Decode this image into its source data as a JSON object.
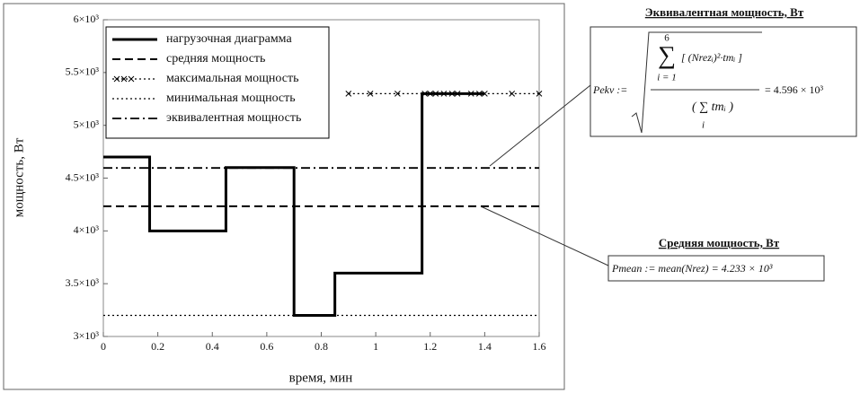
{
  "chart_data": {
    "type": "line",
    "xlabel": "время, мин",
    "ylabel": "мощность, Вт",
    "xlim": [
      0,
      1.6
    ],
    "ylim": [
      3000,
      6000
    ],
    "xticks": [
      0,
      0.2,
      0.4,
      0.6,
      0.8,
      1,
      1.2,
      1.4,
      1.6
    ],
    "yticks": [
      {
        "value": 3000,
        "label": "3×10³"
      },
      {
        "value": 3500,
        "label": "3.5×10³"
      },
      {
        "value": 4000,
        "label": "4×10³"
      },
      {
        "value": 4500,
        "label": "4.5×10³"
      },
      {
        "value": 5000,
        "label": "5×10³"
      },
      {
        "value": 5500,
        "label": "5.5×10³"
      },
      {
        "value": 6000,
        "label": "6×10³"
      }
    ],
    "legend": "upper left",
    "series": [
      {
        "name": "нагрузочная диаграмма",
        "color": "#000000",
        "line_style": "solid",
        "linewidth": 3,
        "x": [
          0,
          0.17,
          0.17,
          0.45,
          0.45,
          0.7,
          0.7,
          0.85,
          0.85,
          1.17,
          1.17,
          1.4
        ],
        "values": [
          4700,
          4700,
          4000,
          4000,
          4600,
          4600,
          3200,
          3200,
          3600,
          3600,
          5300,
          5300
        ]
      },
      {
        "name": "средняя мощность",
        "color": "#000000",
        "line_style": "dashed",
        "linewidth": 2,
        "x": [
          0,
          1.6
        ],
        "values": [
          4233,
          4233
        ]
      },
      {
        "name": "максимальная мощность",
        "color": "#000000",
        "line_style": "dotted",
        "linewidth": 1.2,
        "marker": "x",
        "x": [
          0.9,
          0.98,
          1.08,
          1.18,
          1.2,
          1.22,
          1.25,
          1.28,
          1.3,
          1.35,
          1.38,
          1.4,
          1.5,
          1.6
        ],
        "values": [
          5300,
          5300,
          5300,
          5300,
          5300,
          5300,
          5300,
          5300,
          5300,
          5300,
          5300,
          5300,
          5300,
          5300
        ]
      },
      {
        "name": "минимальная мощность",
        "color": "#000000",
        "line_style": "dotted",
        "linewidth": 1.2,
        "x": [
          0,
          1.6
        ],
        "values": [
          3200,
          3200
        ]
      },
      {
        "name": "эквивалентная мощность",
        "color": "#000000",
        "line_style": "dashdot",
        "linewidth": 1.8,
        "x": [
          0,
          1.6
        ],
        "values": [
          4596,
          4596
        ]
      }
    ],
    "annotations": [
      {
        "title": "Эквивалентная мощность, Вт",
        "lhs": "Pekv :=",
        "sum_symbol": "∑",
        "sum_upper": "6",
        "sum_lower": "i = 1",
        "numerator": "[ (Nrezᵢ)²·tmᵢ ]",
        "denominator": "( ∑ tmᵢ )",
        "denominator_index": "i",
        "result": "= 4.596 × 10³"
      },
      {
        "title": "Средняя мощность, Вт",
        "formula": "Pmean := mean(Nrez) = 4.233 × 10³"
      }
    ]
  }
}
